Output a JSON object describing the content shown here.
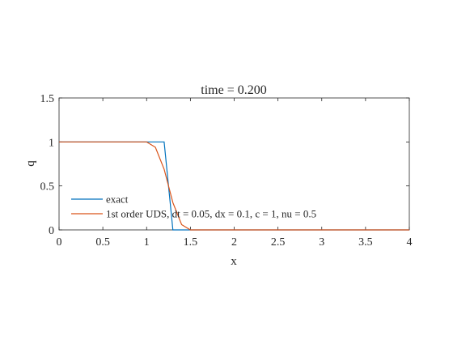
{
  "chart_data": {
    "type": "line",
    "title": "time = 0.200",
    "xlabel": "x",
    "ylabel": "q",
    "xlim": [
      0,
      4
    ],
    "ylim": [
      0,
      1.5
    ],
    "xticks": [
      0,
      0.5,
      1,
      1.5,
      2,
      2.5,
      3,
      3.5,
      4
    ],
    "xtick_labels": [
      "0",
      "0.5",
      "1",
      "1.5",
      "2",
      "2.5",
      "3",
      "3.5",
      "4"
    ],
    "yticks": [
      0,
      0.5,
      1,
      1.5
    ],
    "ytick_labels": [
      "0",
      "0.5",
      "1",
      "1.5"
    ],
    "grid": false,
    "legend_position": "lower-left",
    "series": [
      {
        "name": "exact",
        "color": "#0072BD",
        "x": [
          0,
          1.2,
          1.3,
          4
        ],
        "y": [
          1,
          1,
          0,
          0
        ]
      },
      {
        "name": "1st order UDS, dt = 0.05, dx = 0.1, c = 1, nu = 0.5",
        "color": "#D95319",
        "x": [
          0,
          0.1,
          0.2,
          0.3,
          0.4,
          0.5,
          0.6,
          0.7,
          0.8,
          0.9,
          1.0,
          1.1,
          1.2,
          1.3,
          1.4,
          1.5,
          1.6,
          1.7,
          1.8,
          1.9,
          2.0,
          2.5,
          3.0,
          3.5,
          4.0
        ],
        "y": [
          1,
          1,
          1,
          1,
          1,
          1,
          1,
          1,
          1,
          1,
          1,
          0.94,
          0.69,
          0.31,
          0.06,
          0,
          0,
          0,
          0,
          0,
          0,
          0,
          0,
          0,
          0
        ]
      }
    ]
  }
}
